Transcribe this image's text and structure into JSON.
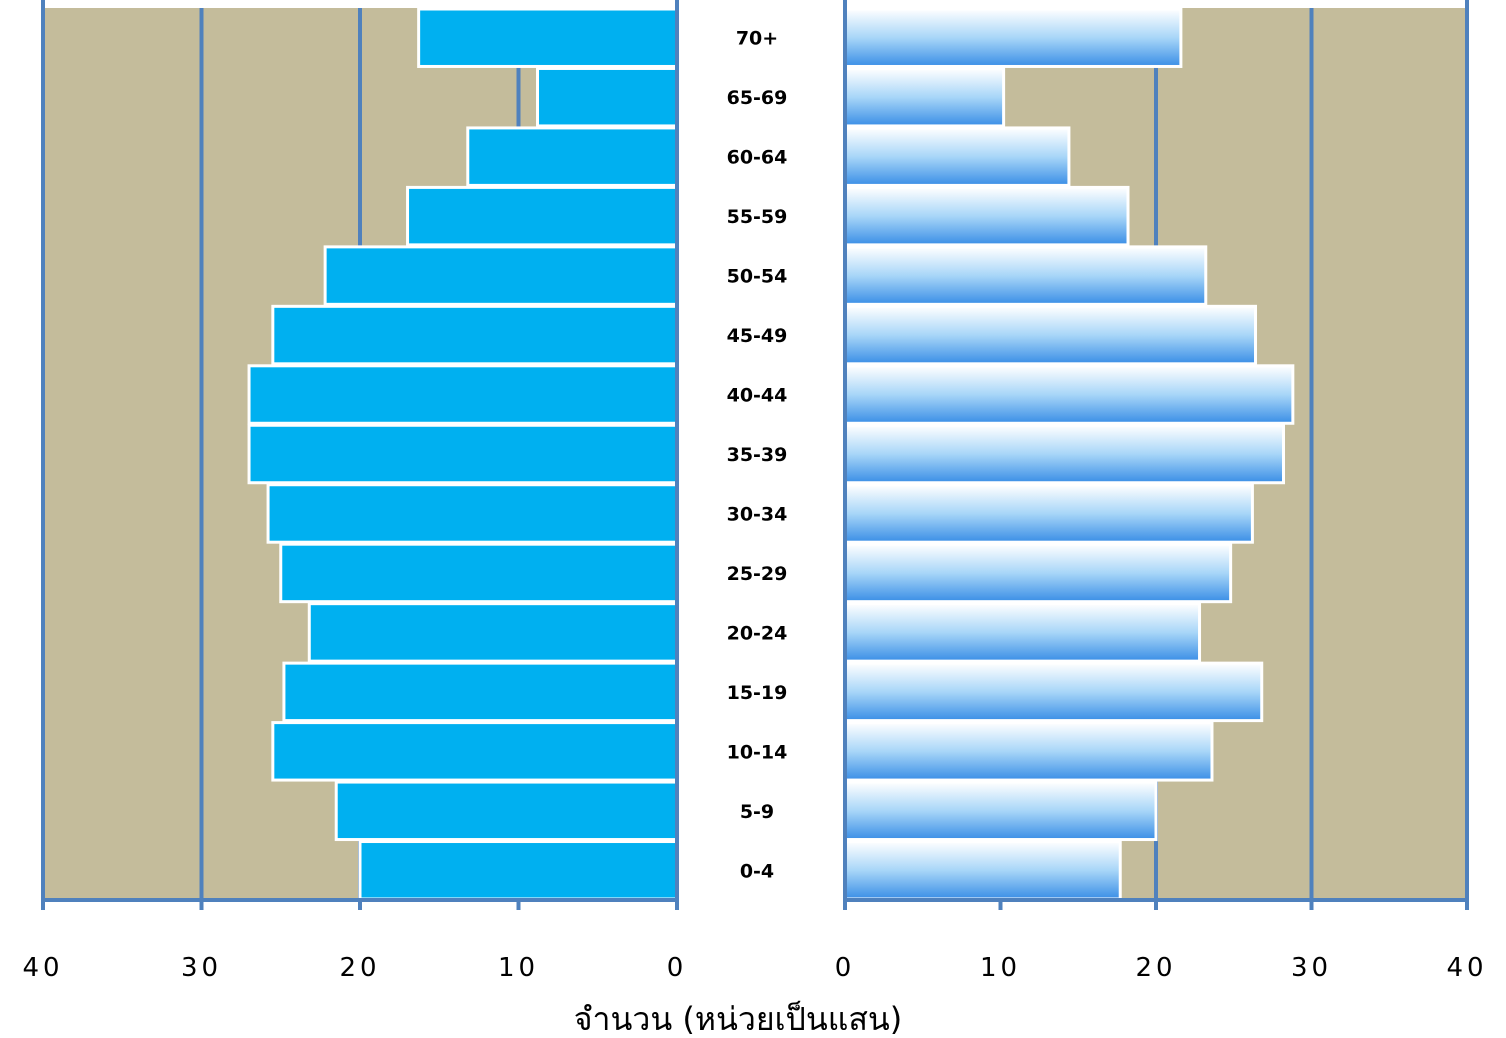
{
  "chart_data": {
    "type": "bar",
    "orientation": "horizontal",
    "layout": "population-pyramid",
    "categories": [
      "0-4",
      "5-9",
      "10-14",
      "15-19",
      "20-24",
      "25-29",
      "30-34",
      "35-39",
      "40-44",
      "45-49",
      "50-54",
      "55-59",
      "60-64",
      "65-69",
      "70+"
    ],
    "series": [
      {
        "side": "left",
        "values": [
          20.0,
          21.5,
          25.5,
          24.8,
          23.2,
          25.0,
          25.8,
          27.0,
          27.0,
          25.5,
          22.2,
          17.0,
          13.2,
          8.8,
          16.3
        ]
      },
      {
        "side": "right",
        "values": [
          17.7,
          20.0,
          23.6,
          26.8,
          22.8,
          24.8,
          26.2,
          28.2,
          28.8,
          26.4,
          23.2,
          18.2,
          14.4,
          10.2,
          21.6
        ]
      }
    ],
    "xlabel": "จำนวน (หน่วยเป็นแสน)",
    "xlim": [
      0,
      40
    ],
    "xticks": [
      "40",
      "30",
      "20",
      "10",
      "0",
      "0",
      "10",
      "20",
      "30",
      "40"
    ],
    "grid": true,
    "colors": {
      "background": "#C4BC9B",
      "gridline": "#4F81BD",
      "left_bar": "#00B0F0",
      "right_bar_light": "#FFFFFF",
      "right_bar_dark": "#3A8EE6",
      "bar_border": "#FFFFFF"
    }
  }
}
